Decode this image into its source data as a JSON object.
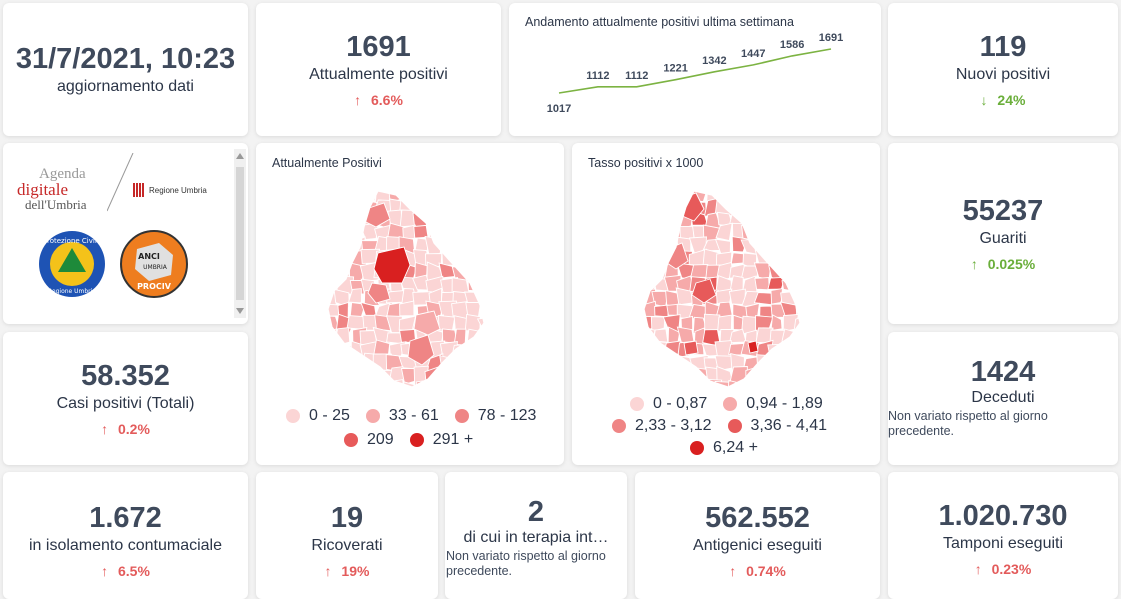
{
  "date": {
    "value": "31/7/2021, 10:23",
    "label": "aggiornamento dati"
  },
  "positivi": {
    "value": "1691",
    "label": "Attualmente positivi",
    "arrow": "↑",
    "delta": "6.6%"
  },
  "trend": {
    "title": "Andamento attualmente positivi ultima settimana",
    "line_color": "#7cb342"
  },
  "chart_data": {
    "type": "line",
    "title": "Andamento attualmente positivi ultima settimana",
    "values": [
      1017,
      1112,
      1112,
      1221,
      1342,
      1447,
      1586,
      1691
    ],
    "value_labels": [
      "1017",
      "1112",
      "1112",
      "1221",
      "1342",
      "1447",
      "1586",
      "1691"
    ],
    "ylim": [
      1017,
      1691
    ],
    "grid": false,
    "legend": "none"
  },
  "nuovi": {
    "value": "119",
    "label": "Nuovi positivi",
    "arrow": "↓",
    "delta": "24%"
  },
  "logos": {
    "agenda_line1": "Agenda",
    "agenda_line2": "digitale",
    "agenda_line3": "dell'Umbria",
    "regione": "Regione Umbria",
    "protezione_top": "Protezione Civile",
    "protezione_bottom": "Regione Umbria",
    "anci_line1": "ANCI",
    "anci_line2": "UMBRIA",
    "anci_line3": "PROCIV"
  },
  "map_positivi": {
    "title": "Attualmente Positivi",
    "legend": [
      {
        "label": "0 - 25",
        "color": "#fbd5d5"
      },
      {
        "label": "33 - 61",
        "color": "#f6aaaa"
      },
      {
        "label": "78 - 123",
        "color": "#ef8585"
      },
      {
        "label": "209",
        "color": "#e75a5a"
      },
      {
        "label": "291 +",
        "color": "#d92020"
      }
    ]
  },
  "map_tasso": {
    "title": "Tasso positivi x 1000",
    "legend": [
      {
        "label": "0 - 0,87",
        "color": "#fbd5d5"
      },
      {
        "label": "0,94 - 1,89",
        "color": "#f6aaaa"
      },
      {
        "label": "2,33 - 3,12",
        "color": "#ef8585"
      },
      {
        "label": "3,36 - 4,41",
        "color": "#e75a5a"
      },
      {
        "label": "6,24 +",
        "color": "#d92020"
      }
    ]
  },
  "guariti": {
    "value": "55237",
    "label": "Guariti",
    "arrow": "↑",
    "delta": "0.025%"
  },
  "casi": {
    "value": "58.352",
    "label": "Casi positivi (Totali)",
    "arrow": "↑",
    "delta": "0.2%"
  },
  "deceduti": {
    "value": "1424",
    "label": "Deceduti",
    "note": "Non variato rispetto al giorno precedente."
  },
  "isolamento": {
    "value": "1.672",
    "label": "in isolamento contumaciale",
    "arrow": "↑",
    "delta": "6.5%"
  },
  "ricoverati": {
    "value": "19",
    "label": "Ricoverati",
    "arrow": "↑",
    "delta": "19%"
  },
  "terapia": {
    "value": "2",
    "label": "di cui in terapia int…",
    "note": "Non variato rispetto al giorno precedente."
  },
  "antigenici": {
    "value": "562.552",
    "label": "Antigenici eseguiti",
    "arrow": "↑",
    "delta": "0.74%"
  },
  "tamponi": {
    "value": "1.020.730",
    "label": "Tamponi eseguiti",
    "arrow": "↑",
    "delta": "0.23%"
  }
}
